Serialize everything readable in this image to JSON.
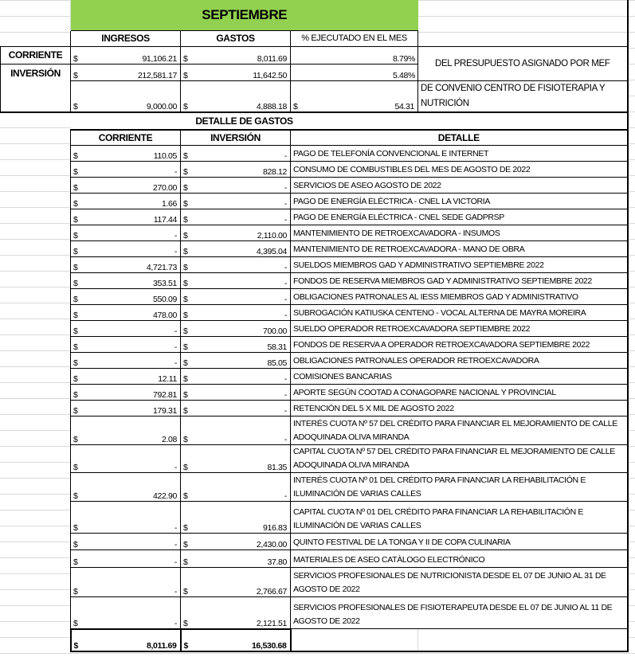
{
  "sheet": {
    "title": "SEPTIEMBRE",
    "summary_headers": [
      "INGRESOS",
      "GASTOS",
      "% EJECUTADO EN EL MES"
    ],
    "summary_rows": [
      {
        "label": "CORRIENTE",
        "ingresos": "91,106.21",
        "gastos": "8,011.69",
        "ejecutado": "8.79%"
      },
      {
        "label": "INVERSIÓN",
        "ingresos": "212,581.17",
        "gastos": "11,642.50",
        "ejecutado": "5.48%"
      },
      {
        "label": "",
        "ingresos": "9,000.00",
        "gastos": "4,888.18",
        "ejecutado": "54.31"
      }
    ],
    "note_mef": "DEL PRESUPUESTO ASIGNADO POR MEF",
    "note_convenio": "DE CONVENIO CENTRO DE FISIOTERAPIA Y NUTRICIÓN",
    "currency": "$",
    "detail_title": "DETALLE DE GASTOS",
    "detail_headers": [
      "CORRIENTE",
      "INVERSIÓN",
      "DETALLE"
    ],
    "detail_rows": [
      {
        "corriente": "110.05",
        "inversion": "-",
        "detalle": "PAGO DE TELEFONÍA CONVENCIONAL E INTERNET"
      },
      {
        "corriente": "-",
        "inversion": "828.12",
        "detalle": "CONSUMO DE COMBUSTIBLES DEL MES DE AGOSTO DE 2022"
      },
      {
        "corriente": "270.00",
        "inversion": "-",
        "detalle": "SERVICIOS DE ASEO AGOSTO DE 2022"
      },
      {
        "corriente": "1.66",
        "inversion": "-",
        "detalle": "PAGO DE ENERGÍA ELÉCTRICA - CNEL LA VICTORIA"
      },
      {
        "corriente": "117.44",
        "inversion": "-",
        "detalle": "PAGO DE ENERGÍA ELÉCTRICA - CNEL SEDE GADPRSP"
      },
      {
        "corriente": "-",
        "inversion": "2,110.00",
        "detalle": "MANTENIMIENTO DE RETROEXCAVADORA - INSUMOS"
      },
      {
        "corriente": "-",
        "inversion": "4,395.04",
        "detalle": "MANTENIMIENTO DE RETROEXCAVADORA - MANO DE OBRA"
      },
      {
        "corriente": "4,721.73",
        "inversion": "-",
        "detalle": "SUELDOS MIEMBROS GAD Y ADMINISTRATIVO SEPTIEMBRE 2022"
      },
      {
        "corriente": "353.51",
        "inversion": "-",
        "detalle": "FONDOS DE RESERVA MIEMBROS GAD Y ADMINISTRATIVO SEPTIEMBRE 2022"
      },
      {
        "corriente": "550.09",
        "inversion": "-",
        "detalle": "OBLIGACIONES PATRONALES AL IESS MIEMBROS GAD Y ADMINISTRATIVO"
      },
      {
        "corriente": "478.00",
        "inversion": "-",
        "detalle": "SUBROGACIÓN KATIUSKA CENTENO - VOCAL ALTERNA DE MAYRA MOREIRA"
      },
      {
        "corriente": "-",
        "inversion": "700.00",
        "detalle": "SUELDO OPERADOR RETROEXCAVADORA SEPTIEMBRE 2022"
      },
      {
        "corriente": "-",
        "inversion": "58.31",
        "detalle": "FONDOS DE RESERVA A OPERADOR RETROEXCAVADORA SEPTIEMBRE 2022"
      },
      {
        "corriente": "-",
        "inversion": "85.05",
        "detalle": "OBLIGACIONES PATRONALES OPERADOR RETROEXCAVADORA"
      },
      {
        "corriente": "12.11",
        "inversion": "-",
        "detalle": "COMISIONES BANCARIAS"
      },
      {
        "corriente": "792.81",
        "inversion": "-",
        "detalle": "APORTE SEGÚN COOTAD A CONAGOPARE NACIONAL Y PROVINCIAL"
      },
      {
        "corriente": "179.31",
        "inversion": "-",
        "detalle": "RETENCIÓN DEL 5 X MIL DE AGOSTO 2022"
      },
      {
        "corriente": "2.08",
        "inversion": "-",
        "detalle": "INTERÉS CUOTA Nº 57 DEL CRÉDITO PARA FINANCIAR EL MEJORAMIENTO DE CALLE ADOQUINADA OLIVA MIRANDA"
      },
      {
        "corriente": "-",
        "inversion": "81.35",
        "detalle": "CAPITAL CUOTA Nº 57 DEL CRÉDITO PARA FINANCIAR EL MEJORAMIENTO DE CALLE ADOQUINADA OLIVA MIRANDA"
      },
      {
        "corriente": "422.90",
        "inversion": "-",
        "detalle": "INTERÉS CUOTA Nº 01 DEL CRÉDITO PARA FINANCIAR LA REHABILITACIÓN E ILUMINACIÓN DE VARIAS CALLES"
      },
      {
        "corriente": "-",
        "inversion": "916.83",
        "detalle": "CAPITAL CUOTA Nº 01 DEL CRÉDITO PARA FINANCIAR LA REHABILITACIÓN E ILUMINACIÓN DE VARIAS CALLES"
      },
      {
        "corriente": "-",
        "inversion": "2,430.00",
        "detalle": "QUINTO FESTIVAL DE LA TONGA Y II DE COPA CULINARIA"
      },
      {
        "corriente": "-",
        "inversion": "37.80",
        "detalle": "MATERIALES DE ASEO CATÀLOGO ELECTRÓNICO"
      },
      {
        "corriente": "-",
        "inversion": "2,766.67",
        "detalle": "SERVICIOS PROFESIONALES DE NUTRICIONISTA DESDE EL 07 DE JUNIO AL 31 DE AGOSTO DE 2022"
      },
      {
        "corriente": "-",
        "inversion": "2,121.51",
        "detalle": "SERVICIOS PROFESIONALES DE FISIOTERAPEUTA DESDE EL 07 DE JUNIO AL 11 DE AGOSTO DE 2022"
      }
    ],
    "totals": {
      "corriente": "8,011.69",
      "inversion": "16,530.68"
    },
    "colors": {
      "title_bg": "#92d050",
      "grid": "#d9d9d9"
    }
  }
}
